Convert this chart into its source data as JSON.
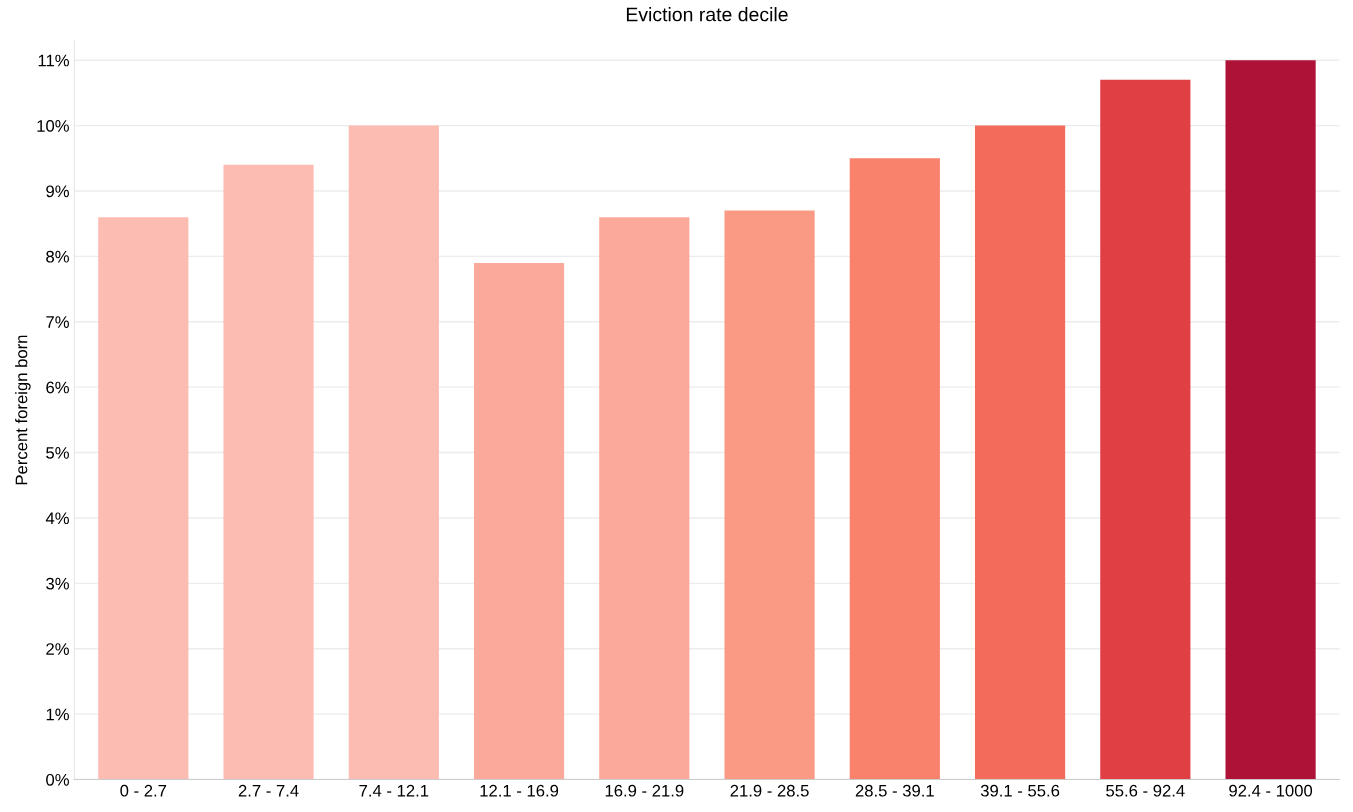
{
  "chart_data": {
    "type": "bar",
    "title": "Eviction rate decile",
    "ylabel": "Percent foreign born",
    "categories": [
      "0 - 2.7",
      "2.7 - 7.4",
      "7.4 - 12.1",
      "12.1 - 16.9",
      "16.9 - 21.9",
      "21.9 - 28.5",
      "28.5 - 39.1",
      "39.1 - 55.6",
      "55.6 - 92.4",
      "92.4 - 1000"
    ],
    "values": [
      8.6,
      9.4,
      10.0,
      7.9,
      8.6,
      8.7,
      9.5,
      10.0,
      10.7,
      11.0
    ],
    "colors": [
      "#fdbcb1",
      "#fdbcb1",
      "#fdbcb1",
      "#fba99a",
      "#fba99a",
      "#fa9a84",
      "#f9826c",
      "#f26b5b",
      "#e03f44",
      "#ae1236"
    ],
    "ylim": [
      0,
      11.3
    ],
    "yticks": [
      {
        "value": 0,
        "label": "0%"
      },
      {
        "value": 1,
        "label": "1%"
      },
      {
        "value": 2,
        "label": "2%"
      },
      {
        "value": 3,
        "label": "3%"
      },
      {
        "value": 4,
        "label": "4%"
      },
      {
        "value": 5,
        "label": "5%"
      },
      {
        "value": 6,
        "label": "6%"
      },
      {
        "value": 7,
        "label": "7%"
      },
      {
        "value": 8,
        "label": "8%"
      },
      {
        "value": 9,
        "label": "9%"
      },
      {
        "value": 10,
        "label": "10%"
      },
      {
        "value": 11,
        "label": "11%"
      }
    ],
    "grid": "y"
  }
}
